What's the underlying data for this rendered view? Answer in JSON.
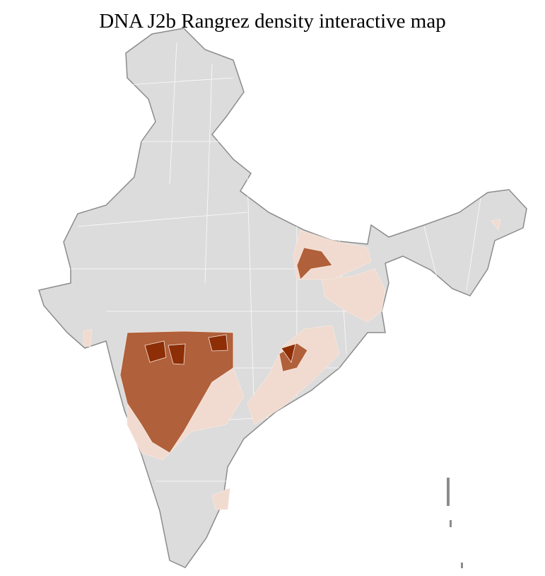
{
  "title": "DNA J2b Rangrez density interactive map",
  "colors": {
    "no_data": "#dcdcdc",
    "low": "#f1dbd0",
    "medium": "#b0603a",
    "high": "#8e2e06",
    "district_border": "#ffffff",
    "state_border": "#8c8c8c"
  },
  "density_levels": [
    "none",
    "low",
    "medium",
    "high"
  ]
}
